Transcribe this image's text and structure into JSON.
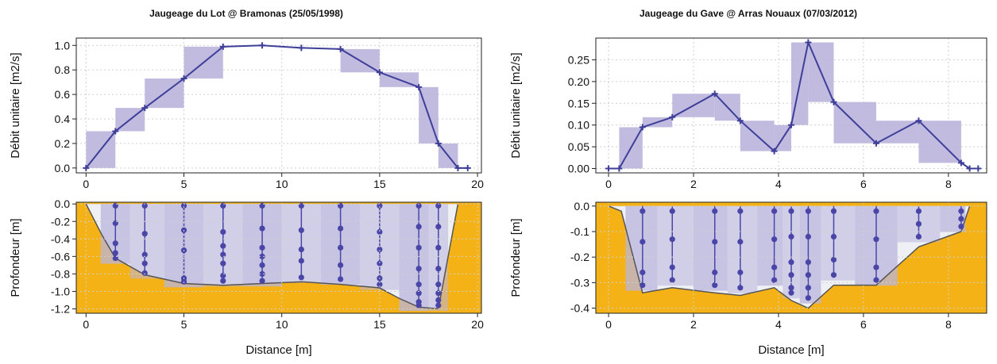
{
  "chart_data": [
    {
      "type": "line",
      "title": "Jaugeage du Lot @ Bramonas (25/05/1998)",
      "xlabel": "Distance [m]",
      "colors": {
        "line": "#3f3f9a",
        "band": "#b9b4dc",
        "bed": "#f5b216",
        "vertical": "#4a46a8",
        "background": "#ffffff"
      },
      "discharge_panel": {
        "ylabel": "Débit unitaire [m2/s]",
        "xlim": [
          -0.5,
          20.2
        ],
        "ylim": [
          -0.04,
          1.06
        ],
        "xticks": [
          "0",
          "5",
          "10",
          "15",
          "20"
        ],
        "xtick_values": [
          0,
          5,
          10,
          15,
          20
        ],
        "yticks": [
          "0.0",
          "0.2",
          "0.4",
          "0.6",
          "0.8",
          "1.0"
        ],
        "ytick_values": [
          0,
          0.2,
          0.4,
          0.6,
          0.8,
          1.0
        ],
        "grid": true,
        "series": [
          {
            "x": [
              0,
              1.5,
              3,
              5,
              7,
              9,
              11,
              13,
              15,
              17,
              18,
              19,
              19.5
            ],
            "y": [
              0,
              0.3,
              0.49,
              0.73,
              0.99,
              1.0,
              0.98,
              0.97,
              0.78,
              0.66,
              0.2,
              0,
              0
            ]
          }
        ],
        "uncertainty_bars": [
          {
            "x0": 0,
            "x1": 1.5,
            "y0": 0.0,
            "y1": 0.3
          },
          {
            "x0": 1.5,
            "x1": 3,
            "y0": 0.3,
            "y1": 0.49
          },
          {
            "x0": 3,
            "x1": 5,
            "y0": 0.49,
            "y1": 0.73
          },
          {
            "x0": 5,
            "x1": 7,
            "y0": 0.73,
            "y1": 0.99
          },
          {
            "x0": 13,
            "x1": 15,
            "y0": 0.78,
            "y1": 0.97
          },
          {
            "x0": 15,
            "x1": 17,
            "y0": 0.66,
            "y1": 0.78
          },
          {
            "x0": 17,
            "x1": 18,
            "y0": 0.2,
            "y1": 0.66
          },
          {
            "x0": 18,
            "x1": 19,
            "y0": 0.0,
            "y1": 0.2
          }
        ]
      },
      "depth_panel": {
        "ylabel": "Profondeur [m]",
        "xlim": [
          -0.5,
          20.2
        ],
        "ylim": [
          -1.25,
          0.02
        ],
        "xticks": [
          "0",
          "5",
          "10",
          "15",
          "20"
        ],
        "xtick_values": [
          0,
          5,
          10,
          15,
          20
        ],
        "yticks": [
          "0.0",
          "-0.2",
          "-0.4",
          "-0.6",
          "-0.8",
          "-1.0",
          "-1.2"
        ],
        "ytick_values": [
          0,
          -0.2,
          -0.4,
          -0.6,
          -0.8,
          -1.0,
          -1.2
        ],
        "grid": true,
        "bed": {
          "x": [
            0,
            0.8,
            1.5,
            3,
            5,
            7,
            9,
            11,
            13,
            15,
            16,
            17,
            18,
            18.5,
            19
          ],
          "y": [
            0,
            -0.35,
            -0.62,
            -0.81,
            -0.91,
            -0.93,
            -0.91,
            -0.89,
            -0.92,
            -0.96,
            -1.08,
            -1.18,
            -1.2,
            -0.6,
            0
          ]
        },
        "verticals": [
          {
            "x": 1.5,
            "points": [
              -0.02,
              -0.22,
              -0.45,
              -0.56,
              -0.62
            ]
          },
          {
            "x": 3,
            "points": [
              -0.02,
              -0.34,
              -0.58,
              -0.68,
              -0.79
            ]
          },
          {
            "x": 5,
            "points": [
              -0.02,
              -0.3,
              -0.53,
              -0.85,
              -0.89
            ]
          },
          {
            "x": 7,
            "points": [
              -0.02,
              -0.32,
              -0.48,
              -0.58,
              -0.68,
              -0.82,
              -0.88
            ]
          },
          {
            "x": 9,
            "points": [
              -0.02,
              -0.28,
              -0.5,
              -0.6,
              -0.7,
              -0.8,
              -0.88
            ]
          },
          {
            "x": 11,
            "points": [
              -0.02,
              -0.3,
              -0.52,
              -0.65,
              -0.84
            ]
          },
          {
            "x": 13,
            "points": [
              -0.02,
              -0.28,
              -0.5,
              -0.7,
              -0.86
            ]
          },
          {
            "x": 15,
            "points": [
              -0.02,
              -0.32,
              -0.52,
              -0.68,
              -0.85,
              -0.92
            ]
          },
          {
            "x": 17,
            "points": [
              -0.02,
              -0.26,
              -0.5,
              -0.74,
              -0.92,
              -1.02,
              -1.12,
              -1.16
            ]
          },
          {
            "x": 18,
            "points": [
              -0.02,
              -0.26,
              -0.5,
              -0.74,
              -0.92,
              -1.02,
              -1.1,
              -1.16
            ]
          }
        ]
      }
    },
    {
      "type": "line",
      "title": "Jaugeage du Gave @ Arras Nouaux (07/03/2012)",
      "xlabel": "Distance [m]",
      "colors": {
        "line": "#3f3f9a",
        "band": "#b9b4dc",
        "bed": "#f5b216",
        "vertical": "#4a46a8",
        "background": "#ffffff"
      },
      "discharge_panel": {
        "ylabel": "Débit unitaire [m2/s]",
        "xlim": [
          -0.3,
          8.9
        ],
        "ylim": [
          -0.01,
          0.3
        ],
        "xticks": [
          "0",
          "2",
          "4",
          "6",
          "8"
        ],
        "xtick_values": [
          0,
          2,
          4,
          6,
          8
        ],
        "yticks": [
          "0.00",
          "0.05",
          "0.10",
          "0.15",
          "0.20",
          "0.25"
        ],
        "ytick_values": [
          0,
          0.05,
          0.1,
          0.15,
          0.2,
          0.25
        ],
        "grid": true,
        "series": [
          {
            "x": [
              0,
              0.25,
              0.8,
              1.5,
              2.5,
              3.1,
              3.9,
              4.3,
              4.7,
              5.3,
              6.3,
              7.3,
              8.3,
              8.5,
              8.7
            ],
            "y": [
              0,
              0,
              0.095,
              0.118,
              0.172,
              0.11,
              0.04,
              0.1,
              0.29,
              0.153,
              0.058,
              0.11,
              0.013,
              0,
              0
            ]
          }
        ],
        "uncertainty_bars": [
          {
            "x0": 0.25,
            "x1": 0.8,
            "y0": 0.0,
            "y1": 0.095
          },
          {
            "x0": 0.8,
            "x1": 1.5,
            "y0": 0.095,
            "y1": 0.118
          },
          {
            "x0": 1.5,
            "x1": 2.5,
            "y0": 0.118,
            "y1": 0.172
          },
          {
            "x0": 2.5,
            "x1": 3.1,
            "y0": 0.11,
            "y1": 0.172
          },
          {
            "x0": 3.1,
            "x1": 3.9,
            "y0": 0.04,
            "y1": 0.11
          },
          {
            "x0": 3.9,
            "x1": 4.3,
            "y0": 0.04,
            "y1": 0.1
          },
          {
            "x0": 4.3,
            "x1": 4.7,
            "y0": 0.1,
            "y1": 0.29
          },
          {
            "x0": 4.7,
            "x1": 5.3,
            "y0": 0.153,
            "y1": 0.29
          },
          {
            "x0": 5.3,
            "x1": 6.3,
            "y0": 0.058,
            "y1": 0.153
          },
          {
            "x0": 6.3,
            "x1": 7.3,
            "y0": 0.058,
            "y1": 0.11
          },
          {
            "x0": 7.3,
            "x1": 8.3,
            "y0": 0.013,
            "y1": 0.11
          }
        ]
      },
      "depth_panel": {
        "ylabel": "Profondeur [m]",
        "xlim": [
          -0.3,
          8.9
        ],
        "ylim": [
          -0.42,
          0.015
        ],
        "xticks": [
          "0",
          "2",
          "4",
          "6",
          "8"
        ],
        "xtick_values": [
          0,
          2,
          4,
          6,
          8
        ],
        "yticks": [
          "0.0",
          "-0.1",
          "-0.2",
          "-0.3",
          "-0.4"
        ],
        "ytick_values": [
          0,
          -0.1,
          -0.2,
          -0.3,
          -0.4
        ],
        "grid": true,
        "bed": {
          "x": [
            0,
            0.3,
            0.8,
            1.5,
            2.5,
            3.1,
            3.9,
            4.3,
            4.7,
            5.3,
            6.3,
            7.3,
            8.3,
            8.5
          ],
          "y": [
            0,
            -0.02,
            -0.34,
            -0.32,
            -0.34,
            -0.35,
            -0.32,
            -0.37,
            -0.4,
            -0.31,
            -0.31,
            -0.16,
            -0.1,
            0
          ]
        },
        "verticals": [
          {
            "x": 0.8,
            "points": [
              -0.02,
              -0.14,
              -0.26,
              -0.31
            ]
          },
          {
            "x": 1.5,
            "points": [
              -0.02,
              -0.13,
              -0.24,
              -0.29
            ]
          },
          {
            "x": 2.5,
            "points": [
              -0.02,
              -0.14,
              -0.26,
              -0.31
            ]
          },
          {
            "x": 3.1,
            "points": [
              -0.02,
              -0.14,
              -0.26,
              -0.32
            ]
          },
          {
            "x": 3.9,
            "points": [
              -0.02,
              -0.13,
              -0.24,
              -0.29
            ]
          },
          {
            "x": 4.3,
            "points": [
              -0.02,
              -0.12,
              -0.22,
              -0.27,
              -0.32,
              -0.34
            ]
          },
          {
            "x": 4.7,
            "points": [
              -0.02,
              -0.12,
              -0.22,
              -0.27,
              -0.32,
              -0.36
            ]
          },
          {
            "x": 5.3,
            "points": [
              -0.02,
              -0.12,
              -0.21,
              -0.27
            ]
          },
          {
            "x": 6.3,
            "points": [
              -0.02,
              -0.13,
              -0.24,
              -0.29
            ]
          },
          {
            "x": 7.3,
            "points": [
              -0.02,
              -0.07,
              -0.12
            ]
          },
          {
            "x": 8.3,
            "points": [
              -0.02,
              -0.05,
              -0.08
            ]
          }
        ]
      }
    }
  ]
}
